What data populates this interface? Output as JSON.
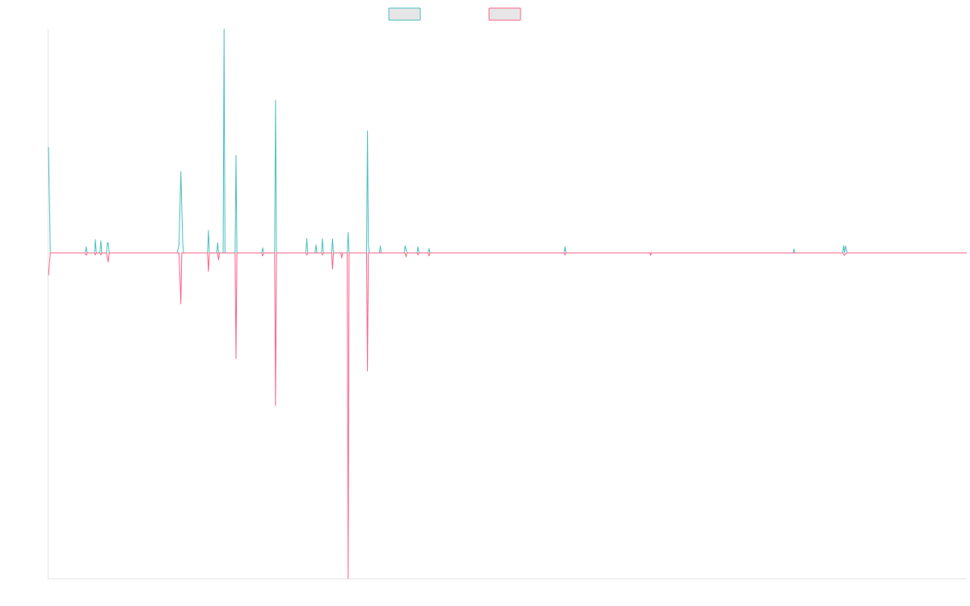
{
  "chart_data": {
    "type": "line",
    "grid": false,
    "legend_placement": "top-center",
    "x_count": 1000,
    "ylim": [
      -1,
      1.7
    ],
    "series": [
      {
        "name": "",
        "color": "#4bc0c0",
        "fill": "#e6e6e6",
        "sign": 1,
        "default": 0,
        "values": [
          [
            0,
            0.52
          ],
          [
            2,
            0
          ],
          [
            40,
            0
          ],
          [
            41,
            0.03
          ],
          [
            42,
            0
          ],
          [
            50,
            0
          ],
          [
            51,
            0.065
          ],
          [
            52,
            0
          ],
          [
            56,
            0
          ],
          [
            57,
            0.06
          ],
          [
            58,
            0
          ],
          [
            63,
            0
          ],
          [
            64,
            0.05
          ],
          [
            65,
            0.05
          ],
          [
            66,
            0
          ],
          [
            140,
            0
          ],
          [
            142,
            0.04
          ],
          [
            144,
            0.4
          ],
          [
            146,
            0.05
          ],
          [
            147,
            0
          ],
          [
            173,
            0
          ],
          [
            174,
            0.11
          ],
          [
            175,
            0
          ],
          [
            183,
            0
          ],
          [
            184,
            0.05
          ],
          [
            185,
            0
          ],
          [
            190,
            0
          ],
          [
            191,
            1.1
          ],
          [
            192,
            0
          ],
          [
            203,
            0
          ],
          [
            204,
            0.48
          ],
          [
            205,
            0
          ],
          [
            232,
            0
          ],
          [
            233,
            0.025
          ],
          [
            234,
            0
          ],
          [
            246,
            0
          ],
          [
            247,
            0.75
          ],
          [
            248,
            0
          ],
          [
            280,
            0
          ],
          [
            281,
            0.07
          ],
          [
            282,
            0
          ],
          [
            290,
            0
          ],
          [
            291,
            0.04
          ],
          [
            292,
            0
          ],
          [
            297,
            0
          ],
          [
            298,
            0.07
          ],
          [
            299,
            0
          ],
          [
            308,
            0
          ],
          [
            309,
            0.07
          ],
          [
            310,
            0
          ],
          [
            325,
            0
          ],
          [
            326,
            0.1
          ],
          [
            327,
            0
          ],
          [
            346,
            0
          ],
          [
            347,
            0.6
          ],
          [
            348,
            0.04
          ],
          [
            349,
            0
          ],
          [
            360,
            0
          ],
          [
            361,
            0.035
          ],
          [
            362,
            0
          ],
          [
            387,
            0
          ],
          [
            388,
            0.035
          ],
          [
            390,
            0
          ],
          [
            401,
            0
          ],
          [
            402,
            0.03
          ],
          [
            403,
            0
          ],
          [
            413,
            0
          ],
          [
            414,
            0.022
          ],
          [
            415,
            0
          ],
          [
            561,
            0
          ],
          [
            562,
            0.03
          ],
          [
            563,
            0
          ],
          [
            810,
            0
          ],
          [
            811,
            0.02
          ],
          [
            812,
            0
          ],
          [
            864,
            0
          ],
          [
            865,
            0.035
          ],
          [
            866,
            0
          ],
          [
            867,
            0.035
          ],
          [
            869,
            0
          ],
          [
            999,
            0
          ]
        ]
      },
      {
        "name": "",
        "color": "#ff6384",
        "fill": "#e6e6e6",
        "sign": -1,
        "default": 0,
        "values": [
          [
            0,
            0.11
          ],
          [
            2,
            0
          ],
          [
            40,
            0
          ],
          [
            41,
            0.012
          ],
          [
            42,
            0
          ],
          [
            50,
            0
          ],
          [
            51,
            0.01
          ],
          [
            52,
            0
          ],
          [
            56,
            0
          ],
          [
            57,
            0.01
          ],
          [
            58,
            0
          ],
          [
            63,
            0
          ],
          [
            65,
            0.045
          ],
          [
            66,
            0
          ],
          [
            142,
            0
          ],
          [
            144,
            0.25
          ],
          [
            145,
            0
          ],
          [
            173,
            0
          ],
          [
            174,
            0.09
          ],
          [
            175,
            0
          ],
          [
            184,
            0
          ],
          [
            185,
            0.035
          ],
          [
            186,
            0
          ],
          [
            203,
            0
          ],
          [
            204,
            0.52
          ],
          [
            205,
            0
          ],
          [
            232,
            0
          ],
          [
            233,
            0.015
          ],
          [
            234,
            0
          ],
          [
            246,
            0
          ],
          [
            247,
            0.75
          ],
          [
            248,
            0
          ],
          [
            280,
            0
          ],
          [
            281,
            0.01
          ],
          [
            282,
            0
          ],
          [
            297,
            0
          ],
          [
            298,
            0.01
          ],
          [
            299,
            0
          ],
          [
            308,
            0
          ],
          [
            309,
            0.08
          ],
          [
            310,
            0
          ],
          [
            318,
            0
          ],
          [
            319,
            0.025
          ],
          [
            320,
            0
          ],
          [
            325,
            0
          ],
          [
            326,
            1.6
          ],
          [
            327,
            0
          ],
          [
            346,
            0
          ],
          [
            347,
            0.58
          ],
          [
            348,
            0
          ],
          [
            388,
            0
          ],
          [
            389,
            0.02
          ],
          [
            390,
            0
          ],
          [
            401,
            0
          ],
          [
            402,
            0.01
          ],
          [
            403,
            0
          ],
          [
            413,
            0
          ],
          [
            414,
            0.015
          ],
          [
            415,
            0
          ],
          [
            561,
            0
          ],
          [
            562,
            0.01
          ],
          [
            563,
            0
          ],
          [
            654,
            0
          ],
          [
            655,
            0.012
          ],
          [
            656,
            0
          ],
          [
            864,
            0
          ],
          [
            866,
            0.012
          ],
          [
            868,
            0
          ],
          [
            999,
            0
          ]
        ]
      }
    ]
  }
}
